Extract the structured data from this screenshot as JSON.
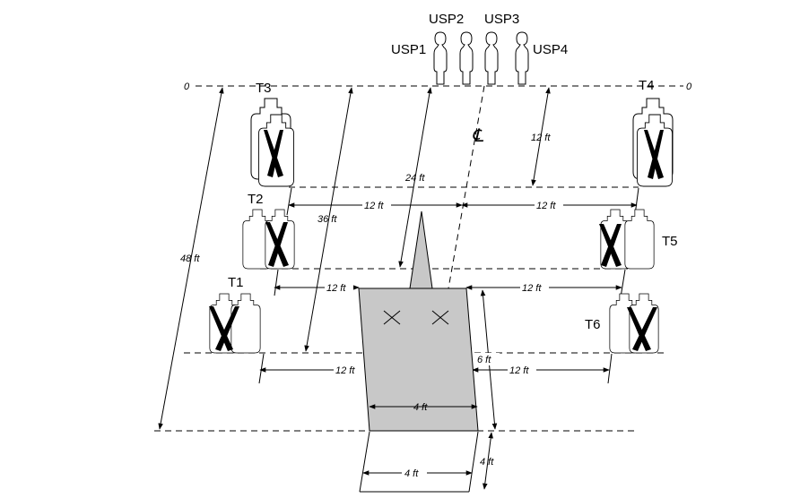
{
  "diagram": {
    "targets": {
      "t1": "T1",
      "t2": "T2",
      "t3": "T3",
      "t4": "T4",
      "t5": "T5",
      "t6": "T6"
    },
    "shooters": {
      "usp1": "USP1",
      "usp2": "USP2",
      "usp3": "USP3",
      "usp4": "USP4"
    },
    "zero_left": "0",
    "zero_right": "0",
    "centerline_symbol": "℄",
    "dimensions": {
      "d48": "48 ft",
      "d36": "36 ft",
      "d24": "24 ft",
      "d12_right_top": "12 ft",
      "row2_left": "12 ft",
      "row2_right": "12 ft",
      "row3_left": "12 ft",
      "row3_right": "12 ft",
      "row4_left": "12 ft",
      "row4_right": "12 ft",
      "box_depth": "6 ft",
      "box_width": "4 ft",
      "lane_width": "4 ft",
      "lane_depth": "4 ft"
    }
  }
}
